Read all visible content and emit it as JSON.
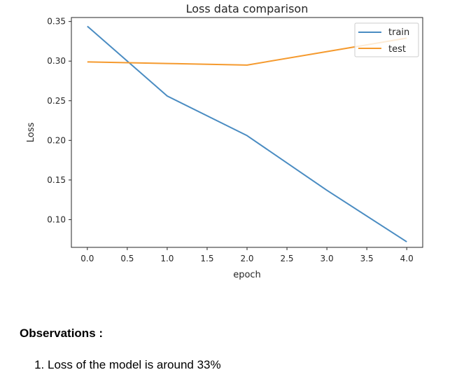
{
  "chart_data": {
    "type": "line",
    "title": "Loss data comparison",
    "xlabel": "epoch",
    "ylabel": "Loss",
    "x": [
      0,
      1,
      2,
      3,
      4
    ],
    "xlim": [
      -0.2,
      4.2
    ],
    "ylim": [
      0.065,
      0.355
    ],
    "xticks": [
      0.0,
      0.5,
      1.0,
      1.5,
      2.0,
      2.5,
      3.0,
      3.5,
      4.0
    ],
    "xtick_labels": [
      "0.0",
      "0.5",
      "1.0",
      "1.5",
      "2.0",
      "2.5",
      "3.0",
      "3.5",
      "4.0"
    ],
    "yticks": [
      0.1,
      0.15,
      0.2,
      0.25,
      0.3,
      0.35
    ],
    "ytick_labels": [
      "0.10",
      "0.15",
      "0.20",
      "0.25",
      "0.30",
      "0.35"
    ],
    "grid": false,
    "legend_position": "top-right",
    "series": [
      {
        "name": "train",
        "color": "#4a8cc2",
        "values": [
          0.344,
          0.256,
          0.206,
          0.137,
          0.072
        ]
      },
      {
        "name": "test",
        "color": "#f59a2e",
        "values": [
          0.299,
          0.297,
          0.295,
          0.312,
          0.329
        ]
      }
    ]
  },
  "observations": {
    "heading": "Observations :",
    "items": [
      "Loss of the model is around 33%"
    ]
  }
}
